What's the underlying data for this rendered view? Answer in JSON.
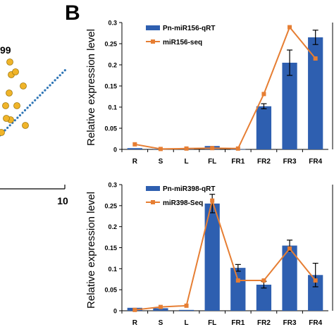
{
  "panel_letter": "B",
  "partial_panel": {
    "label_fragment": "99",
    "axis_tick": "10",
    "color_points": "#f0b429",
    "color_trend": "#2e75b6"
  },
  "colors": {
    "bar": "#2e5fb0",
    "line": "#e67e33",
    "axis": "#000000"
  },
  "chart_data": [
    {
      "type": "bar",
      "ylabel": "Relative expression level",
      "categories": [
        "R",
        "S",
        "L",
        "FL",
        "FR1",
        "FR2",
        "FR3",
        "FR4"
      ],
      "ylim": [
        0,
        0.3
      ],
      "yticks": [
        "0",
        "0.05",
        "0.1",
        "0.15",
        "0.2",
        "0.25",
        "0.3"
      ],
      "series": [
        {
          "name": "Pn-miR156-qRT",
          "kind": "bar",
          "values": [
            0.003,
            0.001,
            0.002,
            0.008,
            0.0005,
            0.102,
            0.205,
            0.265
          ],
          "errors": [
            0.001,
            0.0005,
            0.0008,
            0.001,
            0.0003,
            0.006,
            0.03,
            0.017
          ]
        },
        {
          "name": "miR156-seq",
          "kind": "line",
          "values": [
            0.012,
            0.001,
            0.002,
            0.003,
            0.002,
            0.131,
            0.289,
            0.215
          ]
        }
      ]
    },
    {
      "type": "bar",
      "ylabel": "Relative expression level",
      "categories": [
        "R",
        "S",
        "L",
        "FL",
        "FR1",
        "FR2",
        "FR3",
        "FR4"
      ],
      "ylim": [
        0,
        0.3
      ],
      "yticks": [
        "0",
        "0.05",
        "0.1",
        "0.15",
        "0.2",
        "0.25",
        "0.3"
      ],
      "series": [
        {
          "name": "Pn-miR398-qRT",
          "kind": "bar",
          "values": [
            0.007,
            0.006,
            0.002,
            0.255,
            0.102,
            0.062,
            0.155,
            0.085
          ],
          "errors": [
            0.001,
            0.001,
            0.001,
            0.022,
            0.008,
            0.008,
            0.013,
            0.028
          ]
        },
        {
          "name": "miR398-Seq",
          "kind": "line",
          "values": [
            0.002,
            0.009,
            0.012,
            0.262,
            0.072,
            0.072,
            0.148,
            0.072
          ]
        }
      ]
    }
  ]
}
